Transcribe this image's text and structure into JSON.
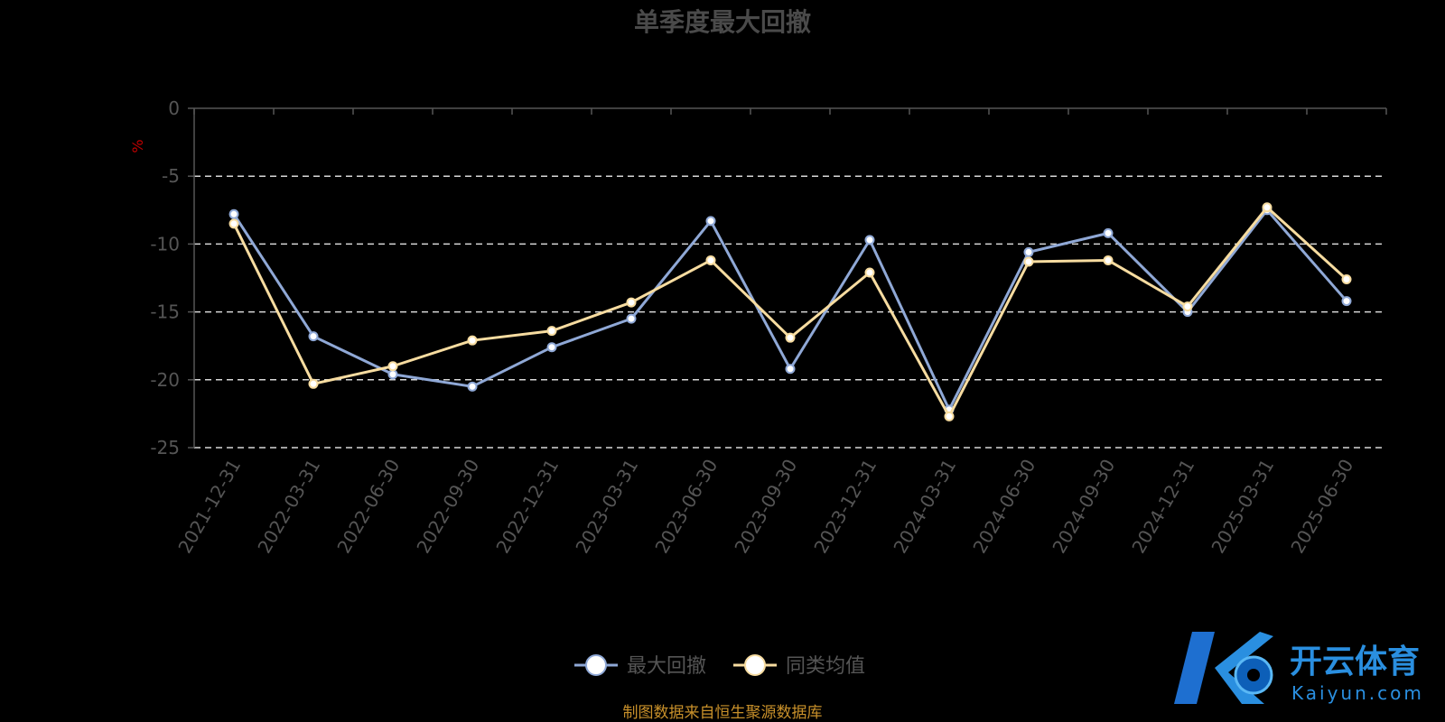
{
  "chart_data": {
    "type": "line",
    "title": "单季度最大回撤",
    "ylabel": "%",
    "ylim": [
      -25,
      0
    ],
    "yticks": [
      0,
      -5,
      -10,
      -15,
      -20,
      -25
    ],
    "grid": true,
    "legend_position": "bottom-center",
    "categories": [
      "2021-12-31",
      "2022-03-31",
      "2022-06-30",
      "2022-09-30",
      "2022-12-31",
      "2023-03-31",
      "2023-06-30",
      "2023-09-30",
      "2023-12-31",
      "2024-03-31",
      "2024-06-30",
      "2024-09-30",
      "2024-12-31",
      "2025-03-31",
      "2025-06-30"
    ],
    "series": [
      {
        "name": "最大回撤",
        "color": "#8fa8d6",
        "values": [
          -7.8,
          -16.8,
          -19.6,
          -20.5,
          -17.6,
          -15.5,
          -8.3,
          -19.2,
          -9.7,
          -22.2,
          -10.6,
          -9.2,
          -15.0,
          -7.5,
          -14.2
        ]
      },
      {
        "name": "同类均值",
        "color": "#f7dca0",
        "values": [
          -8.5,
          -20.3,
          -19.0,
          -17.1,
          -16.4,
          -14.3,
          -11.2,
          -16.9,
          -12.1,
          -22.7,
          -11.3,
          -11.2,
          -14.6,
          -7.3,
          -12.6
        ]
      }
    ]
  },
  "footer": {
    "source": "制图数据来自恒生聚源数据库"
  },
  "brand": {
    "name_cn": "开云体育",
    "name_en": "Kaiyun.com",
    "logo_letter": "K"
  }
}
